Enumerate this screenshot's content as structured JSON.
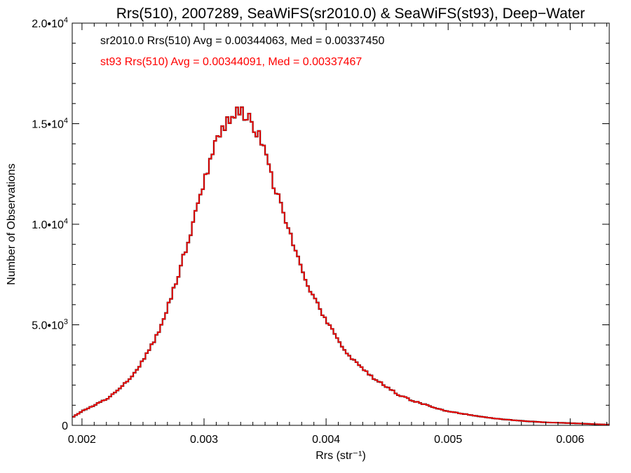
{
  "chart_data": {
    "type": "line",
    "title": "Rrs(510), 2007289, SeaWiFS(sr2010.0) & SeaWiFS(st93), Deep−Water",
    "xlabel": "Rrs (str⁻¹)",
    "ylabel": "Number of Observations",
    "xlim": [
      0.00192,
      0.00632
    ],
    "ylim": [
      0,
      20000
    ],
    "x_ticks": [
      {
        "value": 0.002,
        "label": "0.002"
      },
      {
        "value": 0.003,
        "label": "0.003"
      },
      {
        "value": 0.004,
        "label": "0.004"
      },
      {
        "value": 0.005,
        "label": "0.005"
      },
      {
        "value": 0.006,
        "label": "0.006"
      }
    ],
    "y_ticks": [
      {
        "value": 0,
        "mantissa": "0",
        "exponent": ""
      },
      {
        "value": 5000,
        "mantissa": "5.0•10",
        "exponent": "3"
      },
      {
        "value": 10000,
        "mantissa": "1.0•10",
        "exponent": "4"
      },
      {
        "value": 15000,
        "mantissa": "1.5•10",
        "exponent": "4"
      },
      {
        "value": 20000,
        "mantissa": "2.0•10",
        "exponent": "4"
      }
    ],
    "grid": false,
    "legend_position": "top-left",
    "annotations": [
      {
        "text": "sr2010.0 Rrs(510) Avg = 0.00344063, Med = 0.00337450",
        "color": "#000000"
      },
      {
        "text": "st93 Rrs(510) Avg = 0.00344091, Med = 0.00337467",
        "color": "#ff0000"
      }
    ],
    "series": [
      {
        "color": "#000000",
        "x": [
          0.0019,
          0.002,
          0.0021,
          0.0022,
          0.0023,
          0.0024,
          0.0025,
          0.0026,
          0.0027,
          0.0028,
          0.0029,
          0.003,
          0.0031,
          0.00315,
          0.0032,
          0.00325,
          0.0033,
          0.00335,
          0.0034,
          0.00345,
          0.0035,
          0.0036,
          0.0037,
          0.0038,
          0.0039,
          0.004,
          0.0041,
          0.0042,
          0.0043,
          0.0044,
          0.0045,
          0.0046,
          0.0047,
          0.0048,
          0.0049,
          0.005,
          0.0052,
          0.0054,
          0.0056,
          0.0058,
          0.006,
          0.0062,
          0.0063
        ],
        "y": [
          300,
          700,
          1000,
          1300,
          1800,
          2400,
          3200,
          4300,
          5800,
          7700,
          9900,
          12200,
          14100,
          14800,
          15300,
          15500,
          15500,
          15300,
          15000,
          14300,
          13400,
          11500,
          9500,
          7700,
          6300,
          5200,
          4200,
          3400,
          2800,
          2300,
          1900,
          1500,
          1250,
          1050,
          850,
          700,
          500,
          330,
          220,
          150,
          110,
          60,
          40
        ]
      },
      {
        "color": "#ff0000",
        "x": [
          0.0019,
          0.002,
          0.0021,
          0.0022,
          0.0023,
          0.0024,
          0.0025,
          0.0026,
          0.0027,
          0.0028,
          0.0029,
          0.003,
          0.0031,
          0.00315,
          0.0032,
          0.00325,
          0.0033,
          0.00335,
          0.0034,
          0.00345,
          0.0035,
          0.0036,
          0.0037,
          0.0038,
          0.0039,
          0.004,
          0.0041,
          0.0042,
          0.0043,
          0.0044,
          0.0045,
          0.0046,
          0.0047,
          0.0048,
          0.0049,
          0.005,
          0.0052,
          0.0054,
          0.0056,
          0.0058,
          0.006,
          0.0062,
          0.0063
        ],
        "y": [
          300,
          700,
          1000,
          1300,
          1800,
          2400,
          3200,
          4300,
          5800,
          7700,
          9900,
          12200,
          14100,
          14800,
          15300,
          15500,
          15500,
          15300,
          15000,
          14300,
          13400,
          11500,
          9500,
          7700,
          6300,
          5200,
          4200,
          3400,
          2800,
          2300,
          1900,
          1500,
          1250,
          1050,
          850,
          700,
          500,
          330,
          220,
          150,
          110,
          60,
          40
        ]
      }
    ]
  }
}
